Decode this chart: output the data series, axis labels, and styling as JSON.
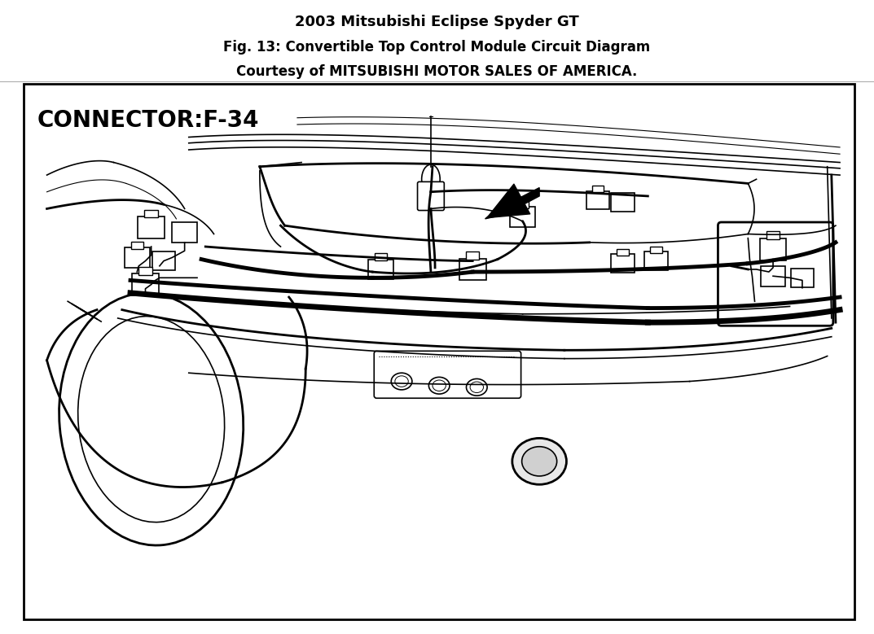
{
  "title_line1": "2003 Mitsubishi Eclipse Spyder GT",
  "title_line2": "Fig. 13: Convertible Top Control Module Circuit Diagram",
  "title_line3": "Courtesy of MITSUBISHI MOTOR SALES OF AMERICA.",
  "title_fontsize": 13,
  "title_color": "#000000",
  "background_color": "#ffffff",
  "diagram_bg": "#ffffff",
  "connector_label": "CONNECTOR:F-34",
  "fig_width": 10.73,
  "fig_height": 7.79
}
